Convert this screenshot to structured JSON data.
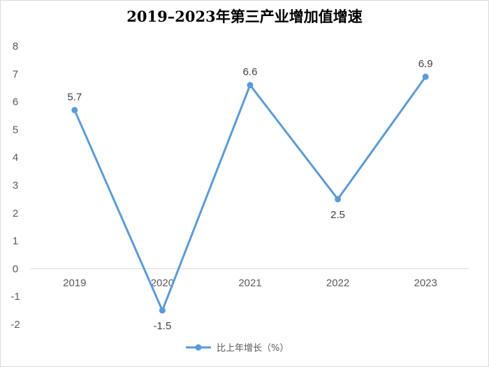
{
  "chart_data": {
    "type": "line",
    "title": "2019–2023年第三产业增加值增速",
    "categories": [
      "2019",
      "2020",
      "2021",
      "2022",
      "2023"
    ],
    "series": [
      {
        "name": "比上年增长（%）",
        "values": [
          5.7,
          -1.5,
          6.6,
          2.5,
          6.9
        ],
        "color": "#5b9bd5"
      }
    ],
    "ylim": [
      -2,
      8
    ],
    "yticks": [
      "-2",
      "-1",
      "0",
      "1",
      "2",
      "3",
      "4",
      "5",
      "6",
      "7",
      "8"
    ],
    "xlabel": "",
    "ylabel": "",
    "grid": false,
    "legend_position": "bottom"
  }
}
